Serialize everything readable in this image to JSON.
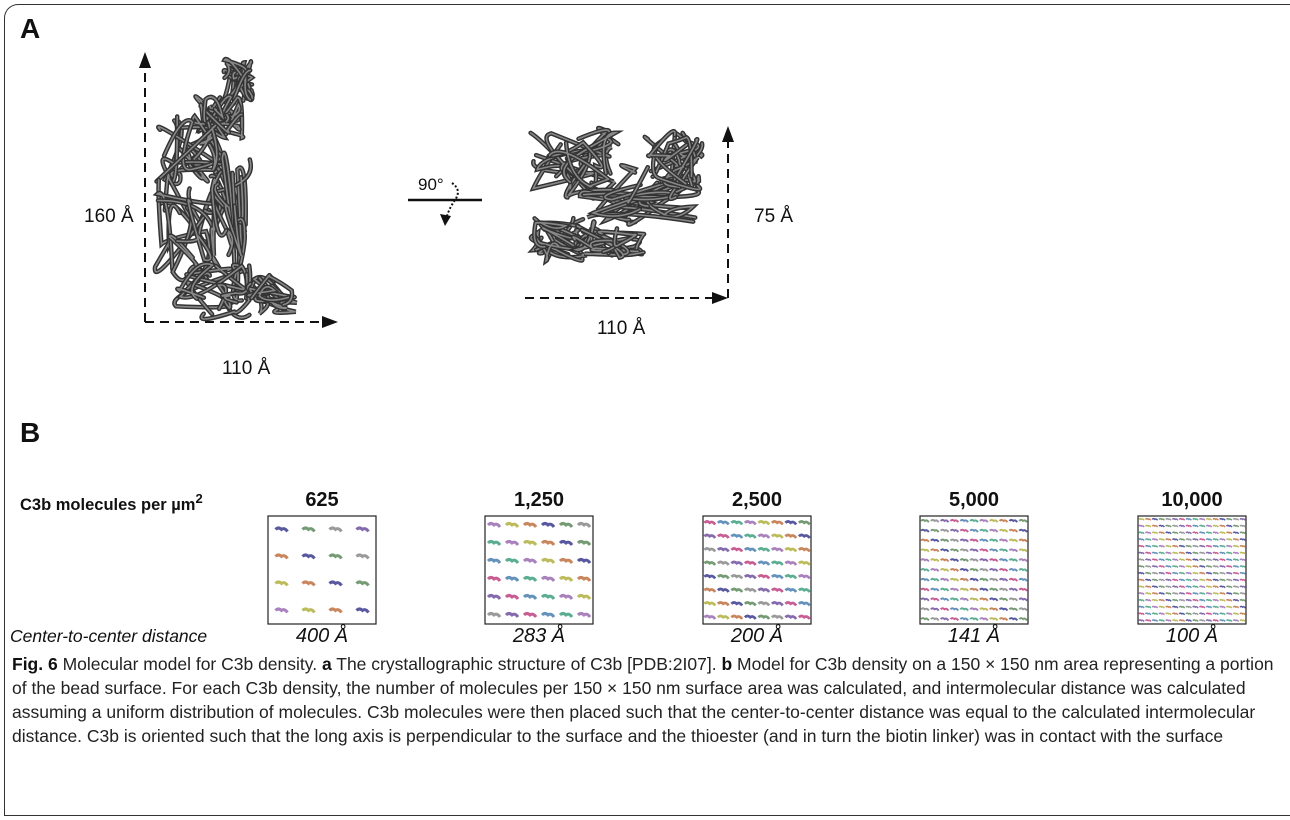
{
  "panel_a": {
    "label": "A",
    "left_height": "160 Å",
    "left_width": "110 Å",
    "rotation": "90°",
    "right_height": "75 Å",
    "right_width": "110 Å"
  },
  "panel_b": {
    "label": "B",
    "row_label": "C3b molecules per µm",
    "row_label_sup": "2",
    "distance_label": "Center-to-center distance",
    "densities": [
      "625",
      "1,250",
      "2,500",
      "5,000",
      "10,000"
    ],
    "distances": [
      "400 Å",
      "283 Å",
      "200 Å",
      "141 Å",
      "100 Å"
    ]
  },
  "caption": {
    "label": "Fig. 6",
    "title": "Molecular model for C3b density.",
    "parts": [
      {
        "label": "a",
        "text": "The crystallographic structure of C3b [PDB:2I07]."
      },
      {
        "label": "b",
        "text": "Model for C3b density on a 150 × 150 nm area representing a portion of the bead surface. For each C3b density, the number of molecules per 150 × 150 nm surface area was calculated, and intermolecular distance was calculated assuming a uniform distribution of molecules. C3b molecules were then placed such that the center-to-center distance was equal to the calculated intermolecular distance. C3b is oriented such that the long axis is perpendicular to the surface and the thioester (and in turn the biotin linker) was in contact with the surface"
      }
    ]
  }
}
